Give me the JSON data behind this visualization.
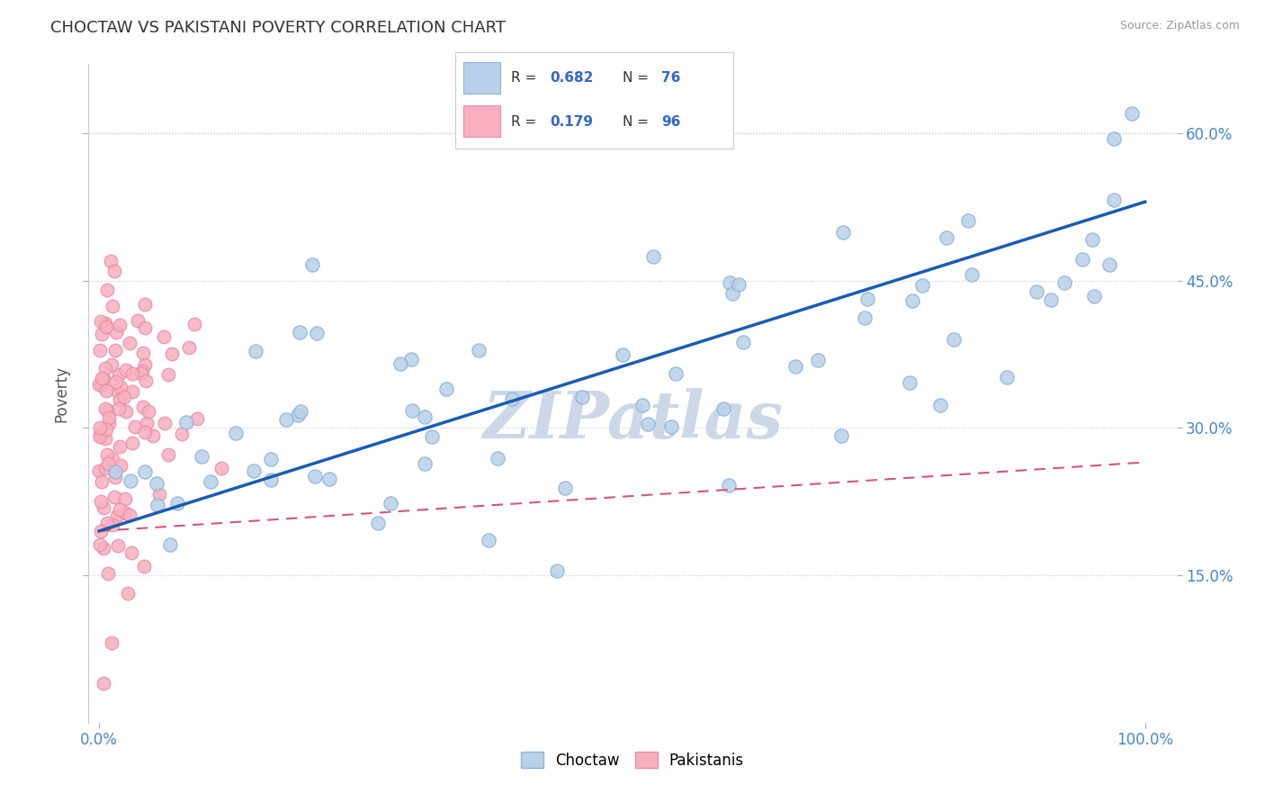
{
  "title": "CHOCTAW VS PAKISTANI POVERTY CORRELATION CHART",
  "source": "Source: ZipAtlas.com",
  "ylabel": "Poverty",
  "y_ticks": [
    0.15,
    0.3,
    0.45,
    0.6
  ],
  "y_tick_labels": [
    "15.0%",
    "30.0%",
    "45.0%",
    "60.0%"
  ],
  "x_tick_labels": [
    "0.0%",
    "100.0%"
  ],
  "choctaw_R": 0.682,
  "choctaw_N": 76,
  "pakistani_R": 0.179,
  "pakistani_N": 96,
  "choctaw_color_face": "#b8d0e8",
  "choctaw_color_edge": "#90b4d8",
  "pakistani_color_face": "#f8b0c0",
  "pakistani_color_edge": "#e890a8",
  "choctaw_line_color": "#1a5cb0",
  "pakistani_line_color": "#d05878",
  "watermark_text": "ZIPatlas",
  "watermark_color": "#ccd8e8",
  "background_color": "#ffffff",
  "grid_color": "#cccccc",
  "title_color": "#333333",
  "source_color": "#999999",
  "tick_color": "#4488cc",
  "ylabel_color": "#555555",
  "legend_R_color": "#3366cc",
  "legend_N_color": "#3366cc",
  "legend_label_color": "#333333",
  "choctaw_line_x0": 0.0,
  "choctaw_line_y0": 0.195,
  "choctaw_line_x1": 1.0,
  "choctaw_line_y1": 0.53,
  "pakistani_line_x0": 0.0,
  "pakistani_line_y0": 0.195,
  "pakistani_line_x1": 1.0,
  "pakistani_line_y1": 0.265,
  "xlim": [
    -0.01,
    1.03
  ],
  "ylim": [
    0.0,
    0.67
  ]
}
